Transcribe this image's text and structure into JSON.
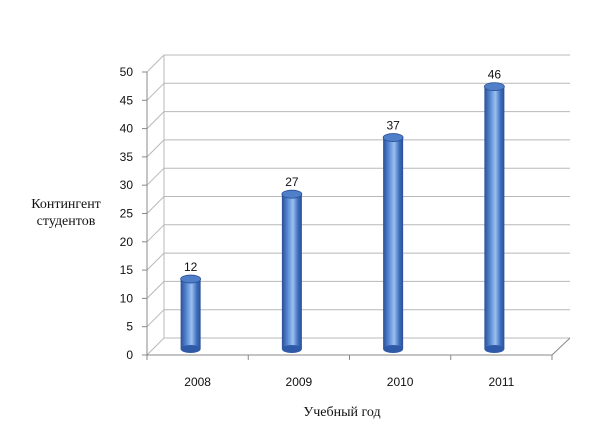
{
  "chart_data": {
    "type": "bar",
    "style": "3d-cylinder",
    "categories": [
      "2008",
      "2009",
      "2010",
      "2011"
    ],
    "values": [
      12,
      27,
      37,
      46
    ],
    "xlabel": "Учебный год",
    "ylabel_lines": [
      "Контингент",
      "студентов"
    ],
    "ylim": [
      0,
      50
    ],
    "ytick_step": 5,
    "yticks": [
      "0",
      "5",
      "10",
      "15",
      "20",
      "25",
      "30",
      "35",
      "40",
      "45",
      "50"
    ],
    "grid": true,
    "legend": "none",
    "data_labels": [
      "12",
      "27",
      "37",
      "46"
    ],
    "colors": {
      "bar_dark": "#2f5aa8",
      "bar_light": "#8eb4e3",
      "bar_top": "#4f7fc9",
      "grid": "#b8b8b8",
      "axis": "#888888"
    }
  }
}
